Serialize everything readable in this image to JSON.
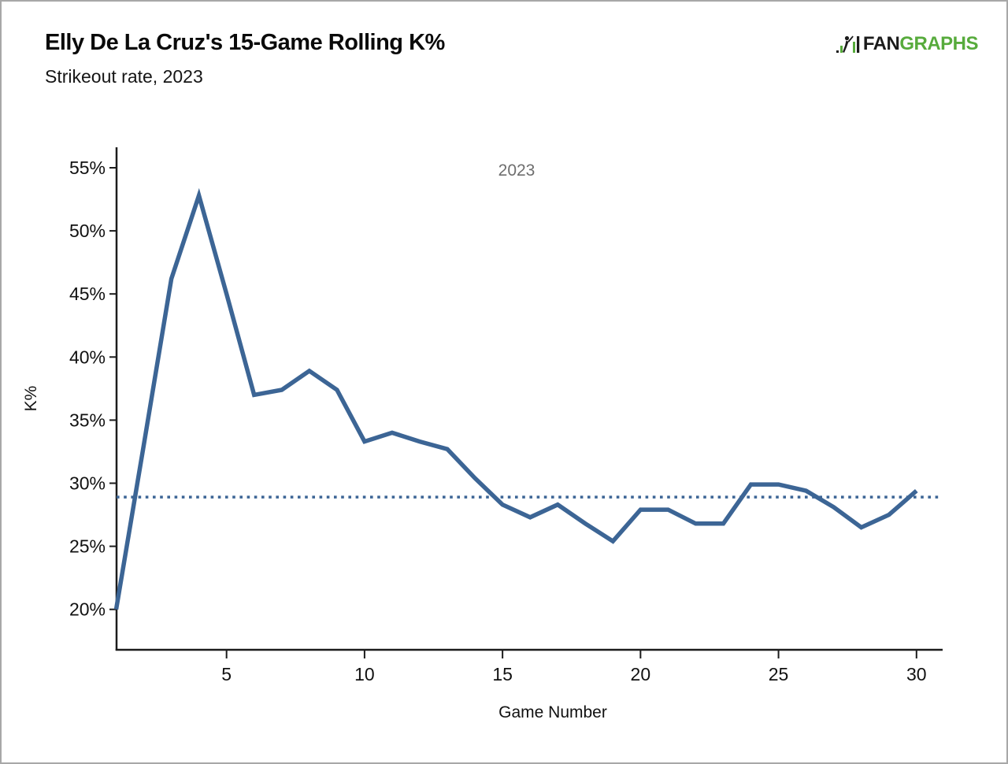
{
  "header": {
    "title": "Elly De La Cruz's 15-Game Rolling K%",
    "subtitle": "Strikeout rate, 2023"
  },
  "logo": {
    "fan": "FAN",
    "graphs": "GRAPHS",
    "green": "#57ab3c",
    "black": "#1b1b1b"
  },
  "legend": {
    "label": "2023",
    "color": "#6e6e6e",
    "position": "top-center"
  },
  "chart_data": {
    "type": "line",
    "title": "Elly De La Cruz's 15-Game Rolling K%",
    "subtitle": "Strikeout rate, 2023",
    "xlabel": "Game Number",
    "ylabel": "K%",
    "legend_position": "top-center",
    "grid": false,
    "line_color": "#3c6595",
    "axis_color": "#1c1c1c",
    "tick_label_color": "#111111",
    "series": [
      {
        "name": "2023",
        "x": [
          1,
          2,
          3,
          4,
          5,
          6,
          7,
          8,
          9,
          10,
          11,
          12,
          13,
          14,
          15,
          16,
          17,
          18,
          19,
          20,
          21,
          22,
          23,
          24,
          25,
          26,
          27,
          28,
          29,
          30
        ],
        "values": [
          20.0,
          33.0,
          46.2,
          52.8,
          45.0,
          37.0,
          37.4,
          38.9,
          37.4,
          33.3,
          34.0,
          33.3,
          32.7,
          30.4,
          28.3,
          27.3,
          28.3,
          26.8,
          25.4,
          27.9,
          27.9,
          26.8,
          26.8,
          29.9,
          29.9,
          29.4,
          28.1,
          26.5,
          27.5,
          29.4
        ]
      }
    ],
    "reference_line": {
      "value": 28.9,
      "style": "dotted"
    },
    "x_ticks": [
      5,
      10,
      15,
      20,
      25,
      30
    ],
    "y_ticks": [
      20,
      25,
      30,
      35,
      40,
      45,
      50,
      55
    ],
    "y_tick_suffix": "%",
    "xlim": [
      1,
      31
    ],
    "ylim": [
      16.8,
      56.7
    ]
  }
}
